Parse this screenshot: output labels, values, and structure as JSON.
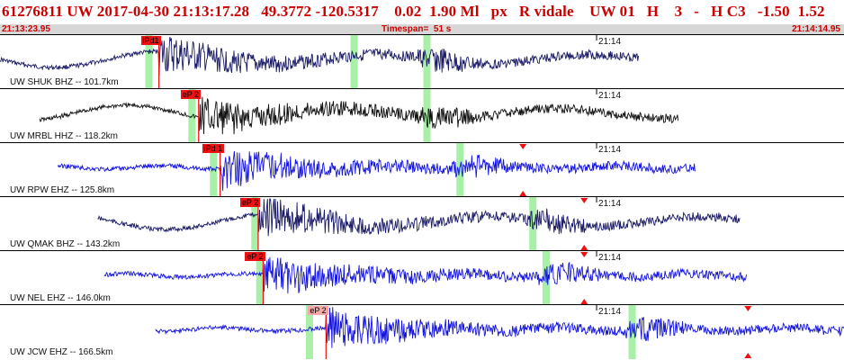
{
  "header": {
    "event_id": "61276811",
    "network": "UW",
    "date": "2017-04-30",
    "time": "21:13:17.28",
    "lat": "49.3772",
    "lon": "-120.5317",
    "depth": "0.02",
    "magnitude": "1.90",
    "mag_type": "Ml",
    "event_type": "px",
    "review": "R",
    "analyst": "vidale",
    "source": "UW",
    "version": "01",
    "h_code": "H",
    "count": "3",
    "dash": "-",
    "h_flag": "H",
    "c_code": "C3",
    "value1": "-1.50",
    "value2": "1.52"
  },
  "subbar": {
    "start_time": "21:13:23.95",
    "timespan_label": "Timespan=",
    "timespan_value": "51 s",
    "end_time": "21:14:14.95"
  },
  "colors": {
    "title_red": "#cc0000",
    "navy_trace": "#1a1a66",
    "black_trace": "#111111",
    "blue_trace": "#1414e0",
    "pick_red": "#ee1111",
    "window_green": "#a8f0a8",
    "subbar_gray": "#d7d7d7"
  },
  "traces": [
    {
      "label": "UW SHUK BHZ -- 101.7km",
      "station": "SHUK",
      "color": "navy",
      "start_s": 0.0,
      "end_s": 38.6,
      "minute_mark": "21:14",
      "pick": {
        "label": "iPd1",
        "time_s": 9.6
      },
      "windows_s": [
        9.0,
        21.4,
        25.8
      ],
      "triangles_s": [],
      "pale": false
    },
    {
      "label": "UW MRBL HHZ -- 118.2km",
      "station": "MRBL",
      "color": "black",
      "start_s": 2.4,
      "end_s": 41.0,
      "minute_mark": "21:14",
      "pick": {
        "label": "eP 2",
        "time_s": 12.0
      },
      "windows_s": [
        11.6,
        25.8
      ],
      "triangles_s": [],
      "pale": false
    },
    {
      "label": "UW RPW EHZ -- 125.8km",
      "station": "RPW",
      "color": "blue",
      "start_s": 3.5,
      "end_s": 42.0,
      "minute_mark": "21:14",
      "pick": {
        "label": "iPd 1",
        "time_s": 13.3
      },
      "windows_s": [
        12.9,
        27.8
      ],
      "triangles_s": [
        31.6
      ],
      "pale": false
    },
    {
      "label": "UW QMAK BHZ -- 143.2km",
      "station": "QMAK",
      "color": "navy",
      "start_s": 5.9,
      "end_s": 44.7,
      "minute_mark": "21:14",
      "pick": {
        "label": "eP 2",
        "time_s": 15.6
      },
      "windows_s": [
        15.4,
        32.2
      ],
      "triangles_s": [
        35.3
      ],
      "pale": false
    },
    {
      "label": "UW NEL EHZ -- 146.0km",
      "station": "NEL",
      "color": "blue",
      "start_s": 6.3,
      "end_s": 45.1,
      "minute_mark": "21:14",
      "pick": {
        "label": "eP 2",
        "time_s": 15.9
      },
      "windows_s": [
        15.7,
        33.0
      ],
      "triangles_s": [
        35.3
      ],
      "pale": false
    },
    {
      "label": "UW JCW EHZ -- 166.5km",
      "station": "JCW",
      "color": "blue",
      "start_s": 9.4,
      "end_s": 51.0,
      "minute_mark": "21:14",
      "pick": {
        "label": "eP 2",
        "time_s": 19.7
      },
      "windows_s": [
        18.7,
        38.2
      ],
      "triangles_s": [
        45.2
      ],
      "pale": true
    }
  ]
}
